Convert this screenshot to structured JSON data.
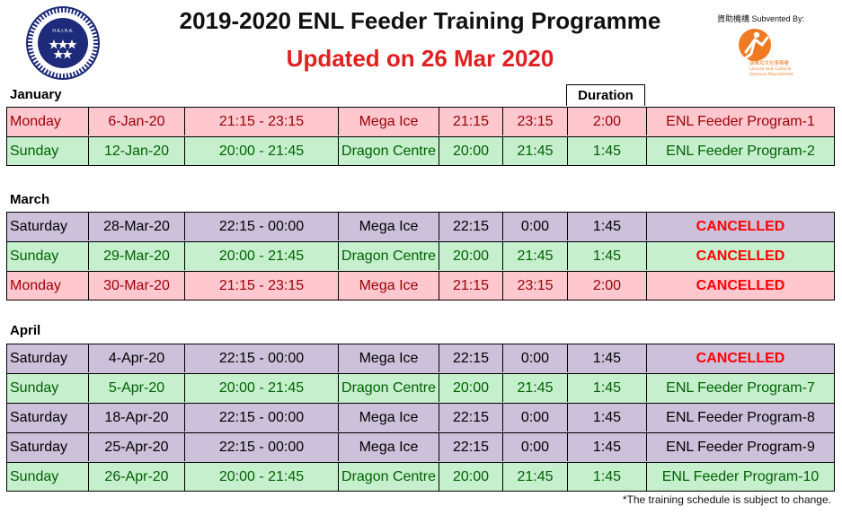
{
  "header": {
    "title": "2019-2020 ENL Feeder Training Programme",
    "subtitle": "Updated on 26 Mar 2020",
    "sponsor_label": "資助機構 Subvented By:",
    "left_logo_text": "H.K.I.H.A.",
    "right_logo_lines": [
      "康樂及文化事務署",
      "Leisure and Cultural",
      "Services Department"
    ]
  },
  "colors": {
    "pink": "#ffc7ce",
    "green": "#c6efce",
    "purple": "#ccc0da",
    "cancel": "#ff0000",
    "subtitle": "#e02020"
  },
  "duration_header": "Duration",
  "sections": [
    {
      "label": "January",
      "rows": [
        {
          "color": "pink",
          "day": "Monday",
          "date": "6-Jan-20",
          "time": "21:15 - 23:15",
          "venue": "Mega Ice",
          "start": "21:15",
          "end": "23:15",
          "duration": "2:00",
          "program": "ENL Feeder Program-1"
        },
        {
          "color": "green",
          "day": "Sunday",
          "date": "12-Jan-20",
          "time": "20:00 - 21:45",
          "venue": "Dragon Centre",
          "start": "20:00",
          "end": "21:45",
          "duration": "1:45",
          "program": "ENL Feeder Program-2"
        }
      ]
    },
    {
      "label": "March",
      "rows": [
        {
          "color": "purple",
          "day": "Saturday",
          "date": "28-Mar-20",
          "time": "22:15 - 00:00",
          "venue": "Mega Ice",
          "start": "22:15",
          "end": "0:00",
          "duration": "1:45",
          "program": "CANCELLED"
        },
        {
          "color": "green",
          "day": "Sunday",
          "date": "29-Mar-20",
          "time": "20:00 - 21:45",
          "venue": "Dragon Centre",
          "start": "20:00",
          "end": "21:45",
          "duration": "1:45",
          "program": "CANCELLED"
        },
        {
          "color": "pink",
          "day": "Monday",
          "date": "30-Mar-20",
          "time": "21:15 - 23:15",
          "venue": "Mega Ice",
          "start": "21:15",
          "end": "23:15",
          "duration": "2:00",
          "program": "CANCELLED"
        }
      ]
    },
    {
      "label": "April",
      "rows": [
        {
          "color": "purple",
          "day": "Saturday",
          "date": "4-Apr-20",
          "time": "22:15 - 00:00",
          "venue": "Mega Ice",
          "start": "22:15",
          "end": "0:00",
          "duration": "1:45",
          "program": "CANCELLED"
        },
        {
          "color": "green",
          "day": "Sunday",
          "date": "5-Apr-20",
          "time": "20:00 - 21:45",
          "venue": "Dragon Centre",
          "start": "20:00",
          "end": "21:45",
          "duration": "1:45",
          "program": "ENL Feeder Program-7"
        },
        {
          "color": "purple",
          "day": "Saturday",
          "date": "18-Apr-20",
          "time": "22:15 - 00:00",
          "venue": "Mega Ice",
          "start": "22:15",
          "end": "0:00",
          "duration": "1:45",
          "program": "ENL Feeder Program-8"
        },
        {
          "color": "purple",
          "day": "Saturday",
          "date": "25-Apr-20",
          "time": "22:15 - 00:00",
          "venue": "Mega Ice",
          "start": "22:15",
          "end": "0:00",
          "duration": "1:45",
          "program": "ENL Feeder Program-9"
        },
        {
          "color": "green",
          "day": "Sunday",
          "date": "26-Apr-20",
          "time": "20:00 - 21:45",
          "venue": "Dragon Centre",
          "start": "20:00",
          "end": "21:45",
          "duration": "1:45",
          "program": "ENL Feeder Program-10"
        }
      ]
    }
  ],
  "footnote": "*The training schedule is subject to change."
}
